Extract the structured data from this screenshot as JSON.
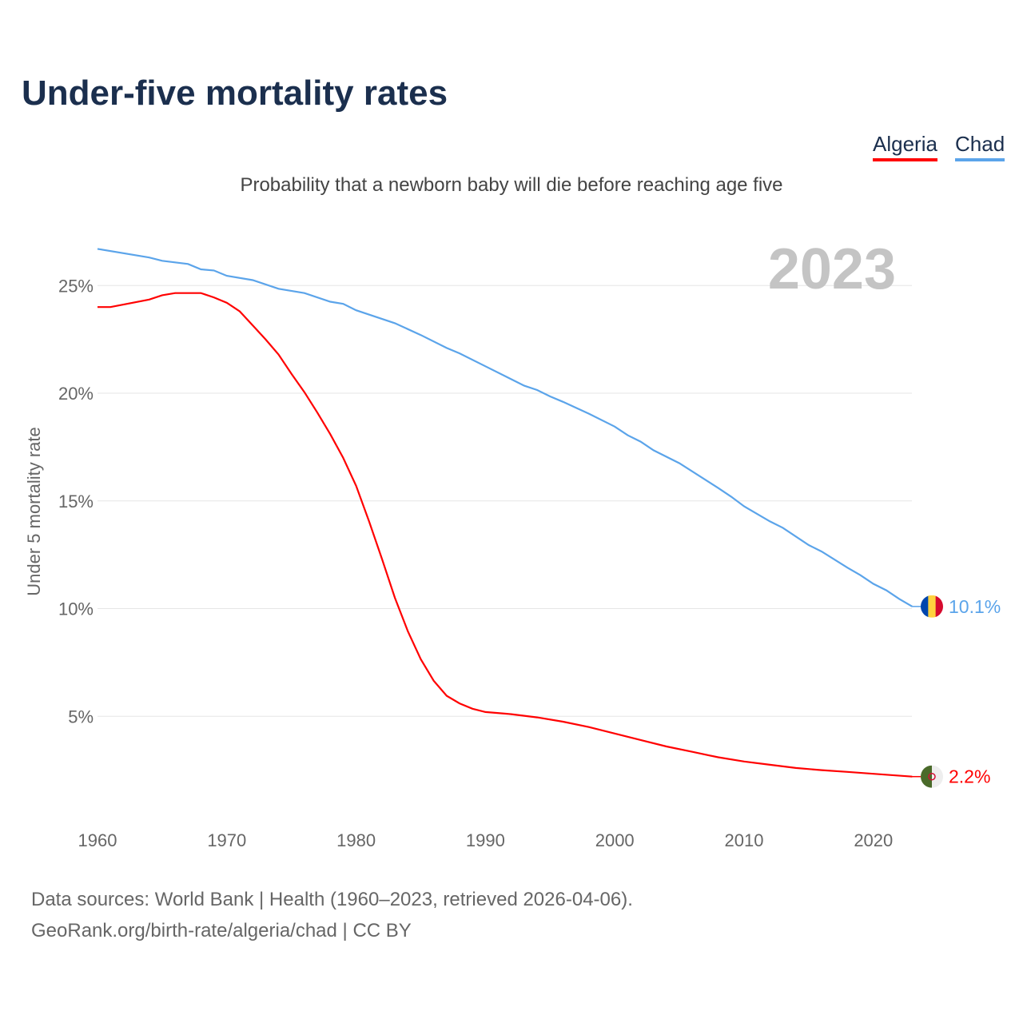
{
  "title": "Under-five mortality rates",
  "subtitle": "Probability that a newborn baby will die before reaching age five",
  "year_label": "2023",
  "source_line1": "Data sources: World Bank | Health (1960–2023, retrieved 2026-04-06).",
  "source_line2": "GeoRank.org/birth-rate/algeria/chad | CC BY",
  "chart_data": {
    "type": "line",
    "title": "Under-five mortality rates",
    "ylabel": "Under 5 mortality rate",
    "xlabel": "",
    "xlim": [
      1960,
      2023
    ],
    "ylim": [
      0,
      27
    ],
    "xticks": [
      "1960",
      "1970",
      "1980",
      "1990",
      "2000",
      "2010",
      "2020"
    ],
    "yticks": [
      "5%",
      "10%",
      "15%",
      "20%",
      "25%"
    ],
    "legend": "top-right",
    "series": [
      {
        "name": "Algeria",
        "color": "#ff0000",
        "end_label": "2.2%",
        "flag": "algeria-flag",
        "x": [
          1960,
          1961,
          1964,
          1965,
          1966,
          1968,
          1969,
          1970,
          1971,
          1972,
          1973,
          1974,
          1975,
          1976,
          1977,
          1978,
          1979,
          1980,
          1981,
          1982,
          1983,
          1984,
          1985,
          1986,
          1987,
          1988,
          1989,
          1990,
          1992,
          1994,
          1996,
          1998,
          2000,
          2002,
          2004,
          2006,
          2008,
          2010,
          2012,
          2014,
          2016,
          2018,
          2020,
          2023
        ],
        "y": [
          24.0,
          24.0,
          24.35,
          24.55,
          24.65,
          24.65,
          24.45,
          24.2,
          23.8,
          23.15,
          22.5,
          21.8,
          20.9,
          20.05,
          19.1,
          18.1,
          17.0,
          15.7,
          14.05,
          12.3,
          10.5,
          8.95,
          7.65,
          6.65,
          5.95,
          5.6,
          5.35,
          5.2,
          5.1,
          4.95,
          4.75,
          4.5,
          4.2,
          3.9,
          3.6,
          3.35,
          3.1,
          2.9,
          2.75,
          2.6,
          2.5,
          2.42,
          2.33,
          2.2
        ]
      },
      {
        "name": "Chad",
        "color": "#5ba4ea",
        "end_label": "10.1%",
        "flag": "chad-flag",
        "x": [
          1960,
          1964,
          1965,
          1967,
          1968,
          1969,
          1970,
          1972,
          1974,
          1976,
          1978,
          1979,
          1980,
          1983,
          1985,
          1987,
          1988,
          1990,
          1993,
          1994,
          1995,
          1996,
          1998,
          2000,
          2001,
          2002,
          2003,
          2005,
          2008,
          2009,
          2010,
          2012,
          2013,
          2015,
          2016,
          2018,
          2019,
          2020,
          2021,
          2022,
          2023
        ],
        "y": [
          26.7,
          26.3,
          26.15,
          26.0,
          25.75,
          25.7,
          25.45,
          25.25,
          24.85,
          24.65,
          24.25,
          24.15,
          23.85,
          23.25,
          22.7,
          22.1,
          21.85,
          21.25,
          20.35,
          20.15,
          19.85,
          19.6,
          19.05,
          18.45,
          18.05,
          17.75,
          17.35,
          16.75,
          15.6,
          15.2,
          14.75,
          14.05,
          13.75,
          12.95,
          12.65,
          11.9,
          11.55,
          11.15,
          10.85,
          10.45,
          10.1
        ]
      }
    ]
  }
}
